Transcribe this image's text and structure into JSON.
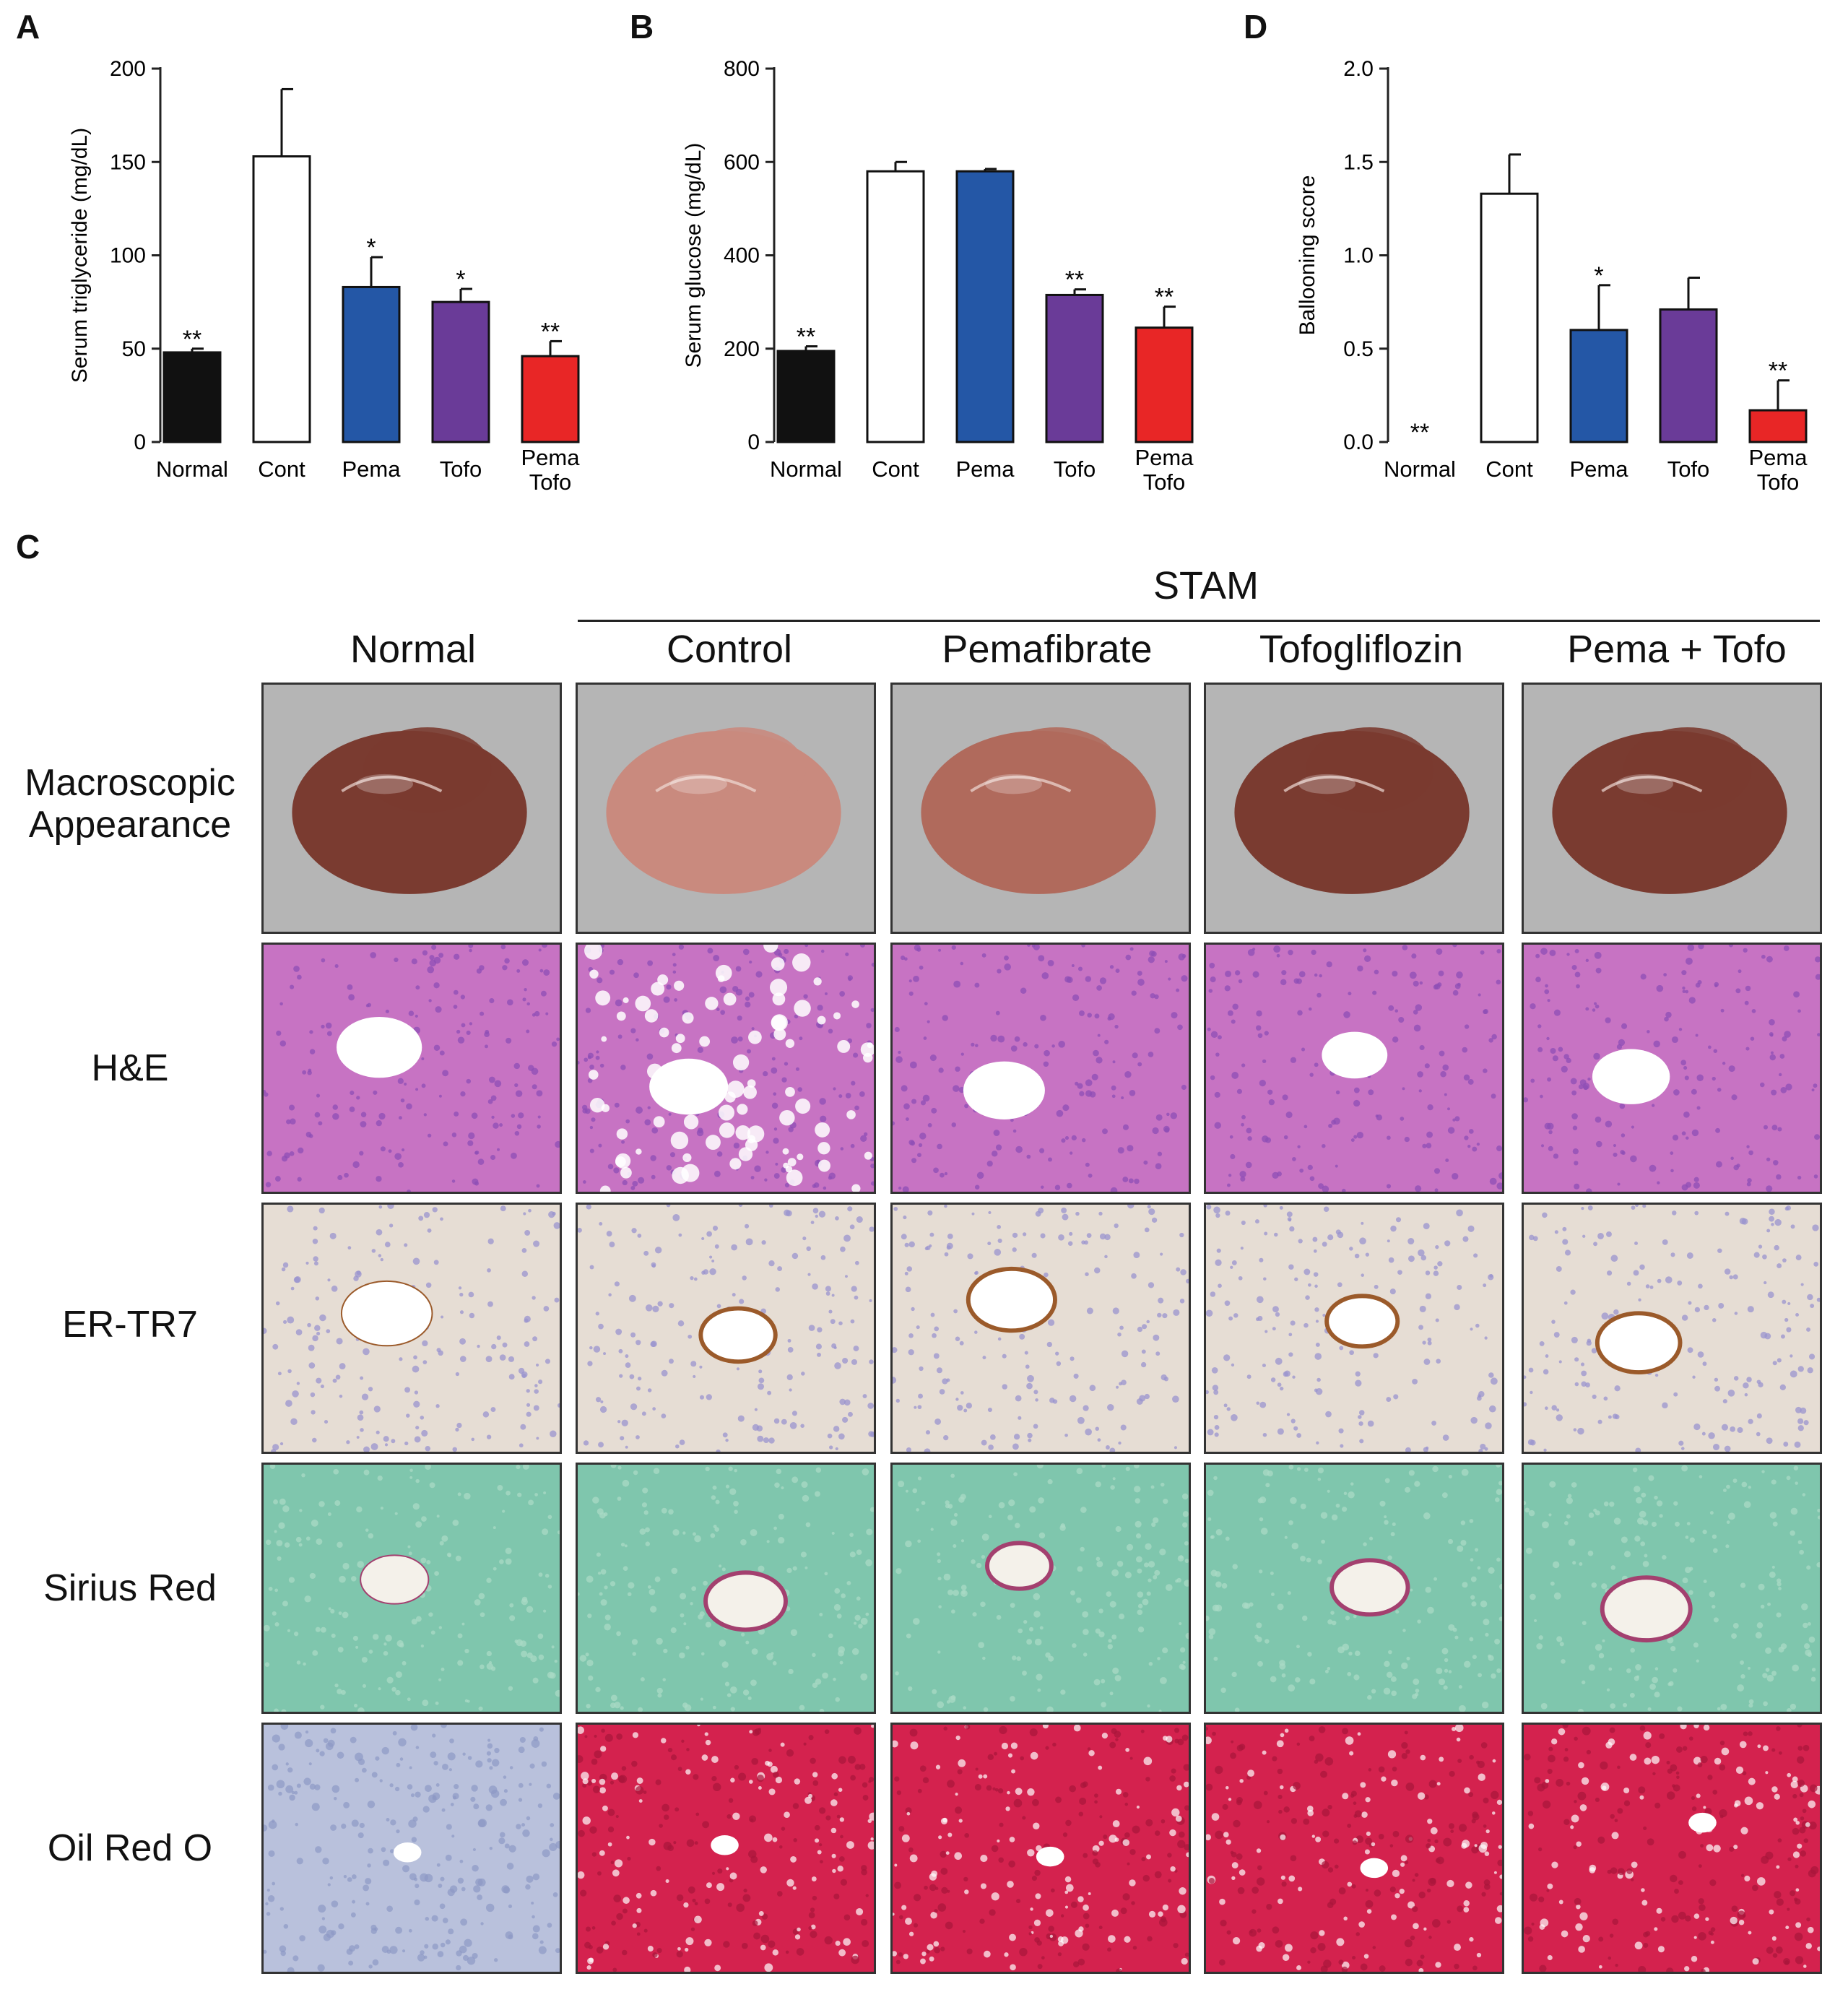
{
  "panels": {
    "a_letter": "A",
    "b_letter": "B",
    "c_letter": "C",
    "d_letter": "D"
  },
  "chart_data": [
    {
      "id": "A",
      "type": "bar",
      "ylabel": "Serum triglyceride (mg/dL)",
      "ylim": [
        0,
        200
      ],
      "yticks": [
        0,
        50,
        100,
        150,
        200
      ],
      "categories": [
        "Normal",
        "Cont",
        "Pema",
        "Tofo",
        "Pema\nTofo"
      ],
      "values": [
        48,
        153,
        83,
        75,
        46
      ],
      "errors": [
        2,
        36,
        16,
        7,
        8
      ],
      "significance": [
        "**",
        "",
        "*",
        "*",
        "**"
      ],
      "colors": [
        "#111111",
        "#ffffff",
        "#2457a6",
        "#6a3b98",
        "#e82626"
      ]
    },
    {
      "id": "B",
      "type": "bar",
      "ylabel": "Serum glucose (mg/dL)",
      "ylim": [
        0,
        800
      ],
      "yticks": [
        0,
        200,
        400,
        600,
        800
      ],
      "categories": [
        "Normal",
        "Cont",
        "Pema",
        "Tofo",
        "Pema\nTofo"
      ],
      "values": [
        195,
        580,
        580,
        315,
        245
      ],
      "errors": [
        10,
        20,
        5,
        12,
        45
      ],
      "significance": [
        "**",
        "",
        "",
        "**",
        "**"
      ],
      "colors": [
        "#111111",
        "#ffffff",
        "#2457a6",
        "#6a3b98",
        "#e82626"
      ]
    },
    {
      "id": "D",
      "type": "bar",
      "ylabel": "Ballooning score",
      "ylim": [
        0,
        2.0
      ],
      "yticks": [
        "0.0",
        "0.5",
        "1.0",
        "1.5",
        "2.0"
      ],
      "categories": [
        "Normal",
        "Cont",
        "Pema",
        "Tofo",
        "Pema\nTofo"
      ],
      "values": [
        0,
        1.33,
        0.6,
        0.71,
        0.17
      ],
      "errors": [
        0,
        0.21,
        0.24,
        0.17,
        0.16
      ],
      "significance": [
        "**",
        "",
        "*",
        "",
        "**"
      ],
      "colors": [
        "#111111",
        "#ffffff",
        "#2457a6",
        "#6a3b98",
        "#e82626"
      ]
    }
  ],
  "histology": {
    "group_label": "STAM",
    "columns": [
      "Normal",
      "Control",
      "Pemafibrate",
      "Tofogliflozin",
      "Pema + Tofo"
    ],
    "rows": [
      "Macroscopic\nAppearance",
      "H&E",
      "ER-TR7",
      "Sirius Red",
      "Oil Red O"
    ]
  }
}
